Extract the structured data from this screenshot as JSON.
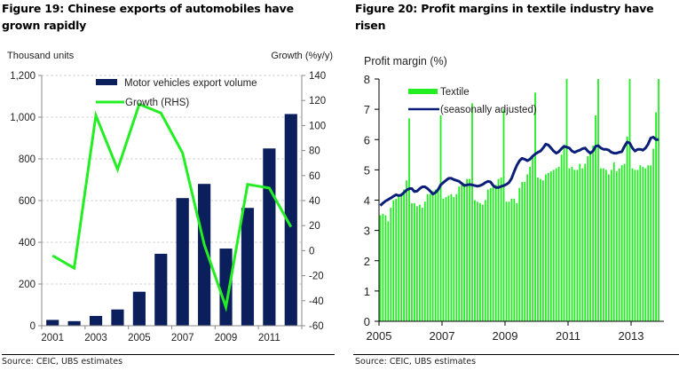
{
  "figures": {
    "left": {
      "title": "Figure 19: Chinese exports of automobiles have grown rapidly",
      "source": "Source:  CEIC, UBS estimates"
    },
    "right": {
      "title": "Figure 20: Profit margins in textile industry have risen",
      "source": "Source:  CEIC, UBS estimates"
    }
  },
  "chart_data": [
    {
      "type": "bar",
      "title": "Figure 19: Chinese exports of automobiles have grown rapidly",
      "ylabel": "Thousand units",
      "y2label": "Growth (%y/y)",
      "categories": [
        "2001",
        "2002",
        "2003",
        "2004",
        "2005",
        "2006",
        "2007",
        "2008",
        "2009",
        "2010",
        "2011",
        "2012"
      ],
      "xtick_labels": [
        "2001",
        "2003",
        "2005",
        "2007",
        "2009",
        "2011"
      ],
      "ylim": [
        0,
        1200
      ],
      "yticks": [
        0,
        200,
        400,
        600,
        800,
        1000,
        1200
      ],
      "ytick_labels": [
        "0",
        "200",
        "400",
        "600",
        "800",
        "1,000",
        "1,200"
      ],
      "y2lim": [
        -60,
        140
      ],
      "y2ticks": [
        -60,
        -40,
        -20,
        0,
        20,
        40,
        60,
        80,
        100,
        120,
        140
      ],
      "y2tick_labels": [
        "-60",
        "-40",
        "-20",
        "0",
        "20",
        "40",
        "60",
        "80",
        "100",
        "120",
        "140"
      ],
      "grid": true,
      "legend_position": "top-center",
      "series": [
        {
          "name": "Motor vehicles export volume",
          "kind": "bar",
          "axis": "left",
          "color": "#0b1f5c",
          "values": [
            28,
            22,
            47,
            78,
            163,
            345,
            612,
            680,
            370,
            565,
            850,
            1015
          ]
        },
        {
          "name": "Growth (RHS)",
          "kind": "line",
          "axis": "right",
          "color": "#22ee22",
          "values": [
            -4,
            -14,
            108,
            65,
            117,
            110,
            78,
            5,
            -45,
            53,
            50,
            19
          ]
        }
      ]
    },
    {
      "type": "bar",
      "title": "Figure 20: Profit margins in textile industry have risen",
      "ylabel": "Profit margin (%)",
      "xtick_labels": [
        "2005",
        "2007",
        "2009",
        "2011",
        "2013"
      ],
      "x_start": 2005.0,
      "x_step_years": 0.08333,
      "ylim": [
        0,
        8
      ],
      "yticks": [
        0,
        1,
        2,
        3,
        4,
        5,
        6,
        7,
        8
      ],
      "ytick_labels": [
        "0",
        "1",
        "2",
        "3",
        "4",
        "5",
        "6",
        "7",
        "8"
      ],
      "grid": false,
      "legend_position": "top-left",
      "series": [
        {
          "name": "Textile",
          "kind": "bar",
          "color": "#22ee22",
          "values": [
            3.5,
            3.55,
            3.5,
            3.3,
            3.75,
            4.0,
            4.05,
            4.1,
            4.15,
            4.35,
            4.65,
            6.7,
            3.9,
            3.9,
            3.8,
            3.85,
            3.75,
            3.95,
            4.2,
            4.2,
            4.3,
            4.35,
            4.4,
            6.8,
            4.05,
            4.1,
            4.15,
            4.2,
            4.1,
            4.2,
            4.45,
            4.5,
            4.55,
            4.7,
            4.7,
            7.2,
            4.0,
            3.95,
            3.9,
            3.85,
            4.0,
            4.35,
            4.4,
            4.45,
            4.5,
            4.7,
            4.75,
            7.0,
            3.95,
            3.95,
            4.05,
            4.05,
            3.9,
            4.4,
            4.6,
            4.6,
            4.85,
            5.1,
            5.4,
            7.55,
            4.75,
            4.7,
            4.65,
            4.85,
            4.9,
            4.95,
            5.0,
            5.05,
            5.1,
            5.5,
            5.8,
            8.0,
            5.05,
            5.1,
            5.0,
            5.0,
            5.2,
            5.05,
            5.2,
            5.45,
            5.6,
            5.8,
            6.8,
            8.0,
            5.05,
            5.05,
            5.0,
            4.85,
            5.0,
            5.25,
            4.95,
            5.05,
            5.15,
            5.2,
            6.1,
            8.0,
            5.05,
            5.0,
            5.0,
            5.15,
            5.1,
            5.05,
            5.15,
            5.15,
            5.7,
            6.9,
            8.0
          ]
        },
        {
          "name": "(seasonally adjusted)",
          "kind": "line",
          "color": "#0b1f7a",
          "values": [
            3.82,
            3.9,
            3.97,
            4.02,
            4.07,
            4.13,
            4.18,
            4.15,
            4.17,
            4.25,
            4.33,
            4.38,
            4.38,
            4.28,
            4.3,
            4.38,
            4.44,
            4.44,
            4.38,
            4.3,
            4.2,
            4.25,
            4.35,
            4.5,
            4.58,
            4.65,
            4.72,
            4.72,
            4.68,
            4.65,
            4.62,
            4.55,
            4.48,
            4.5,
            4.52,
            4.5,
            4.48,
            4.46,
            4.48,
            4.52,
            4.58,
            4.62,
            4.6,
            4.48,
            4.42,
            4.42,
            4.45,
            4.48,
            4.52,
            4.58,
            4.72,
            4.95,
            5.15,
            5.3,
            5.38,
            5.35,
            5.3,
            5.35,
            5.45,
            5.52,
            5.58,
            5.62,
            5.72,
            5.85,
            5.82,
            5.72,
            5.62,
            5.55,
            5.6,
            5.7,
            5.78,
            5.75,
            5.72,
            5.62,
            5.58,
            5.62,
            5.65,
            5.7,
            5.72,
            5.62,
            5.55,
            5.62,
            5.78,
            5.8,
            5.72,
            5.68,
            5.68,
            5.65,
            5.58,
            5.55,
            5.55,
            5.58,
            5.6,
            5.78,
            5.92,
            5.88,
            5.72,
            5.62,
            5.68,
            5.68,
            5.65,
            5.72,
            5.85,
            6.05,
            6.08,
            6.0,
            6.0
          ]
        }
      ]
    }
  ]
}
